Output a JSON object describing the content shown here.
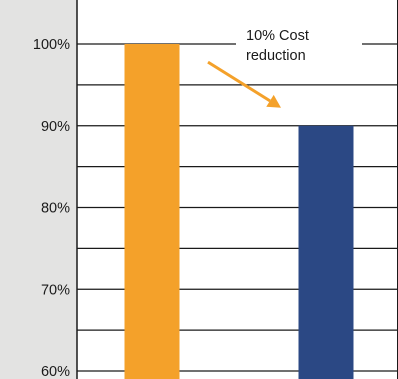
{
  "chart_data": {
    "type": "bar",
    "categories": [
      "",
      ""
    ],
    "values": [
      100,
      90
    ],
    "colors": [
      "#f4a12a",
      "#2b4884"
    ],
    "ylim": [
      60,
      100
    ],
    "yticks": [
      {
        "value": 100,
        "label": "100%"
      },
      {
        "value": 90,
        "label": "90%"
      },
      {
        "value": 80,
        "label": "80%"
      },
      {
        "value": 70,
        "label": "70%"
      },
      {
        "value": 60,
        "label": "60%"
      }
    ],
    "minor_gridlines": [
      95,
      85,
      75,
      65
    ],
    "grid": true,
    "annotation": {
      "lines": [
        "10% Cost",
        "reduction"
      ],
      "from": {
        "category": 0,
        "value": 99.5
      },
      "to": {
        "category": 1,
        "value": 92.2
      }
    },
    "colors_meta": {
      "background": "#e3e3e2",
      "plot_background": "#ffffff",
      "grid": "#1a1a1a",
      "arrow": "#f4a12a"
    }
  }
}
